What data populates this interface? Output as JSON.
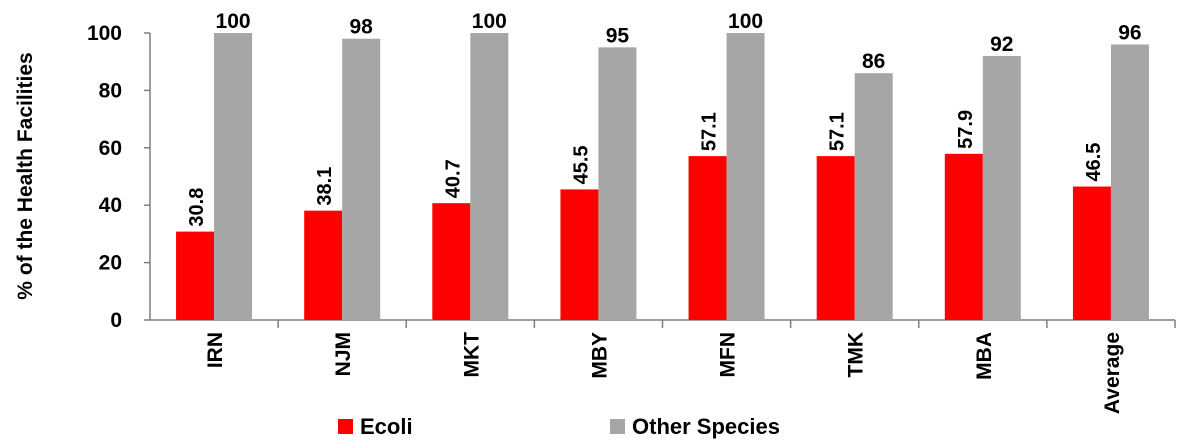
{
  "chart_data": {
    "type": "bar",
    "title": "",
    "xlabel": "",
    "ylabel": "% of the Health Facilities",
    "ylim": [
      0,
      100
    ],
    "yticks": [
      "0",
      "20",
      "40",
      "60",
      "80",
      "100"
    ],
    "categories": [
      "IRN",
      "NJM",
      "MKT",
      "MBY",
      "MFN",
      "TMK",
      "MBA",
      "Average"
    ],
    "series": [
      {
        "name": "Ecoli",
        "color": "#ff0000",
        "values": [
          30.8,
          38.1,
          40.7,
          45.5,
          57.1,
          57.1,
          57.9,
          46.5
        ],
        "labels": [
          "30.8",
          "38.1",
          "40.7",
          "45.5",
          "57.1",
          "57.1",
          "57.9",
          "46.5"
        ]
      },
      {
        "name": "Other Species",
        "color": "#a6a6a6",
        "values": [
          100,
          98,
          100,
          95,
          100,
          86,
          92,
          96
        ],
        "labels": [
          "100",
          "98",
          "100",
          "95",
          "100",
          "86",
          "92",
          "96"
        ]
      }
    ],
    "grid": false,
    "legend": "bottom"
  }
}
